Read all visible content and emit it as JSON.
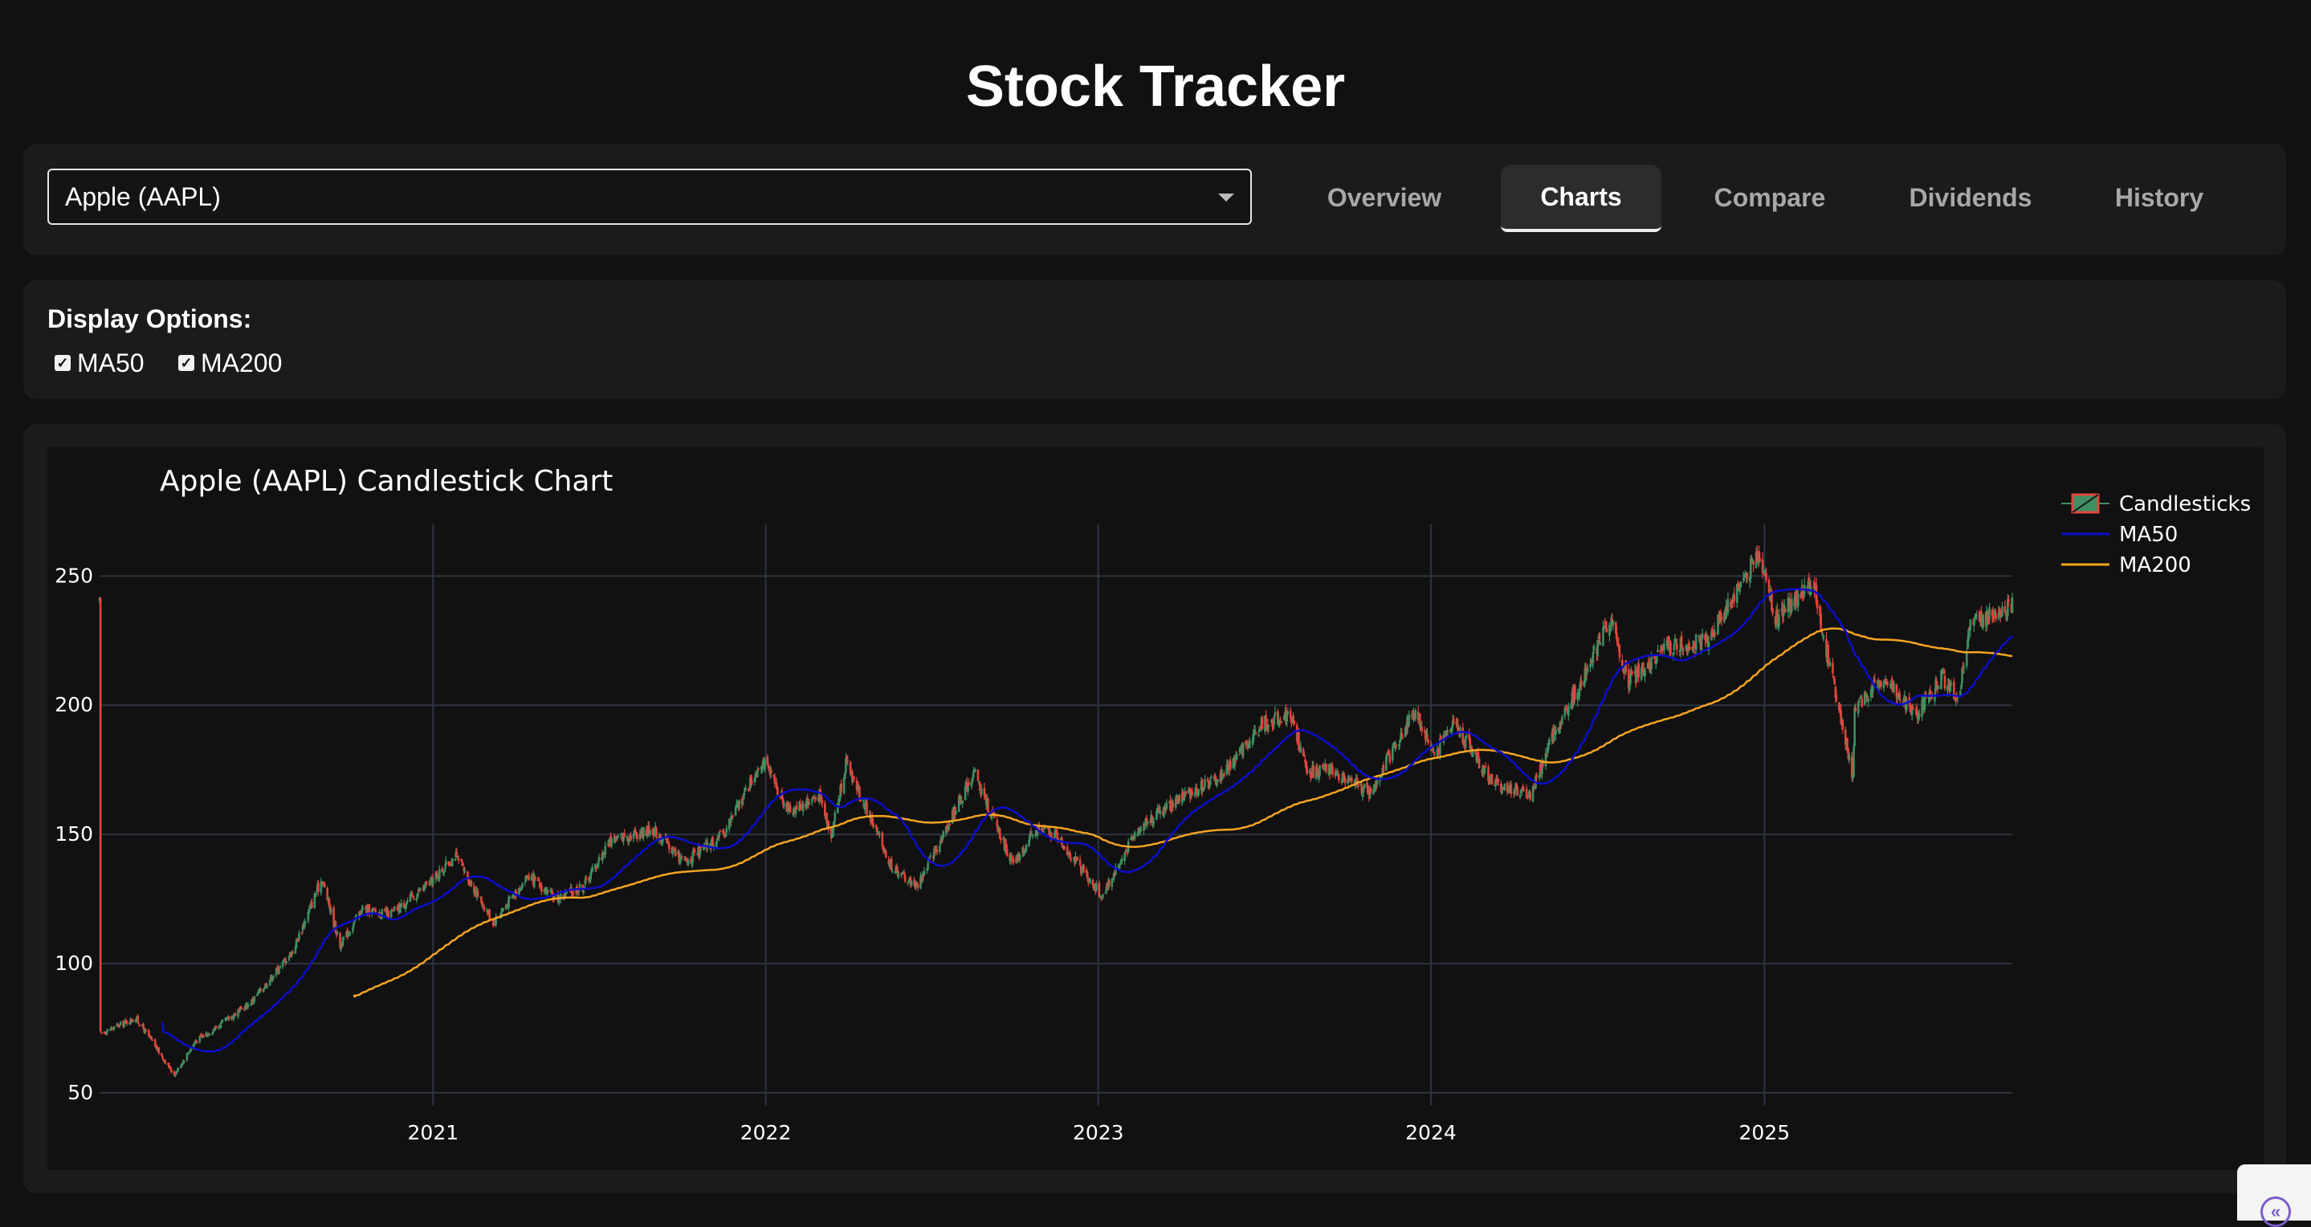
{
  "app": {
    "title": "Stock Tracker"
  },
  "selector": {
    "value": "Apple (AAPL)"
  },
  "tabs": [
    {
      "label": "Overview",
      "active": false
    },
    {
      "label": "Charts",
      "active": true
    },
    {
      "label": "Compare",
      "active": false
    },
    {
      "label": "Dividends",
      "active": false
    },
    {
      "label": "History",
      "active": false
    }
  ],
  "display_options": {
    "label": "Display Options:",
    "ma50": {
      "label": "MA50",
      "checked": true
    },
    "ma200": {
      "label": "MA200",
      "checked": true
    }
  },
  "colors": {
    "up": "#3f8f62",
    "down": "#e0463c",
    "ma50": "#0d0dcc",
    "ma200": "#f5a422",
    "grid": "#2d3440",
    "accent": "#7b5cc9"
  },
  "chart_data": {
    "type": "candlestick",
    "title": "Apple (AAPL) Candlestick Chart",
    "x_ticks": [
      "2021",
      "2022",
      "2023",
      "2024",
      "2025"
    ],
    "y_ticks": [
      50,
      100,
      150,
      200,
      250
    ],
    "ylim": [
      45,
      270
    ],
    "x_range": [
      "2020-01-01",
      "2025-09-30"
    ],
    "grid": true,
    "legend_position": "top-right",
    "legend": [
      "Candlesticks",
      "MA50",
      "MA200"
    ],
    "close_anchors": [
      [
        "2020-01-02",
        73
      ],
      [
        "2020-02-10",
        79
      ],
      [
        "2020-03-23",
        57
      ],
      [
        "2020-04-15",
        70
      ],
      [
        "2020-05-15",
        77
      ],
      [
        "2020-06-15",
        85
      ],
      [
        "2020-07-31",
        105
      ],
      [
        "2020-09-01",
        133
      ],
      [
        "2020-09-21",
        107
      ],
      [
        "2020-10-15",
        121
      ],
      [
        "2020-11-15",
        119
      ],
      [
        "2020-12-31",
        132
      ],
      [
        "2021-01-25",
        142
      ],
      [
        "2021-03-08",
        116
      ],
      [
        "2021-04-15",
        134
      ],
      [
        "2021-05-15",
        125
      ],
      [
        "2021-06-15",
        130
      ],
      [
        "2021-07-15",
        148
      ],
      [
        "2021-08-31",
        152
      ],
      [
        "2021-10-04",
        139
      ],
      [
        "2021-11-15",
        150
      ],
      [
        "2021-12-28",
        179
      ],
      [
        "2022-01-27",
        159
      ],
      [
        "2022-03-01",
        165
      ],
      [
        "2022-03-14",
        150
      ],
      [
        "2022-03-30",
        178
      ],
      [
        "2022-05-20",
        137
      ],
      [
        "2022-06-16",
        130
      ],
      [
        "2022-07-15",
        150
      ],
      [
        "2022-08-17",
        174
      ],
      [
        "2022-09-30",
        138
      ],
      [
        "2022-10-25",
        152
      ],
      [
        "2022-11-15",
        150
      ],
      [
        "2022-12-30",
        129
      ],
      [
        "2023-01-03",
        125
      ],
      [
        "2023-02-15",
        153
      ],
      [
        "2023-03-31",
        164
      ],
      [
        "2023-05-15",
        172
      ],
      [
        "2023-06-30",
        193
      ],
      [
        "2023-07-31",
        196
      ],
      [
        "2023-08-18",
        174
      ],
      [
        "2023-09-15",
        175
      ],
      [
        "2023-10-26",
        166
      ],
      [
        "2023-12-14",
        198
      ],
      [
        "2024-01-05",
        181
      ],
      [
        "2024-01-25",
        194
      ],
      [
        "2024-03-08",
        170
      ],
      [
        "2024-04-19",
        165
      ],
      [
        "2024-05-15",
        189
      ],
      [
        "2024-06-11",
        207
      ],
      [
        "2024-07-15",
        234
      ],
      [
        "2024-08-05",
        209
      ],
      [
        "2024-09-15",
        222
      ],
      [
        "2024-10-31",
        225
      ],
      [
        "2024-12-26",
        259
      ],
      [
        "2025-01-13",
        234
      ],
      [
        "2025-02-24",
        247
      ],
      [
        "2025-03-11",
        220
      ],
      [
        "2025-04-08",
        172
      ],
      [
        "2025-04-10",
        198
      ],
      [
        "2025-05-13",
        212
      ],
      [
        "2025-06-15",
        196
      ],
      [
        "2025-07-15",
        211
      ],
      [
        "2025-08-01",
        202
      ],
      [
        "2025-08-15",
        231
      ],
      [
        "2025-09-30",
        239
      ]
    ]
  }
}
